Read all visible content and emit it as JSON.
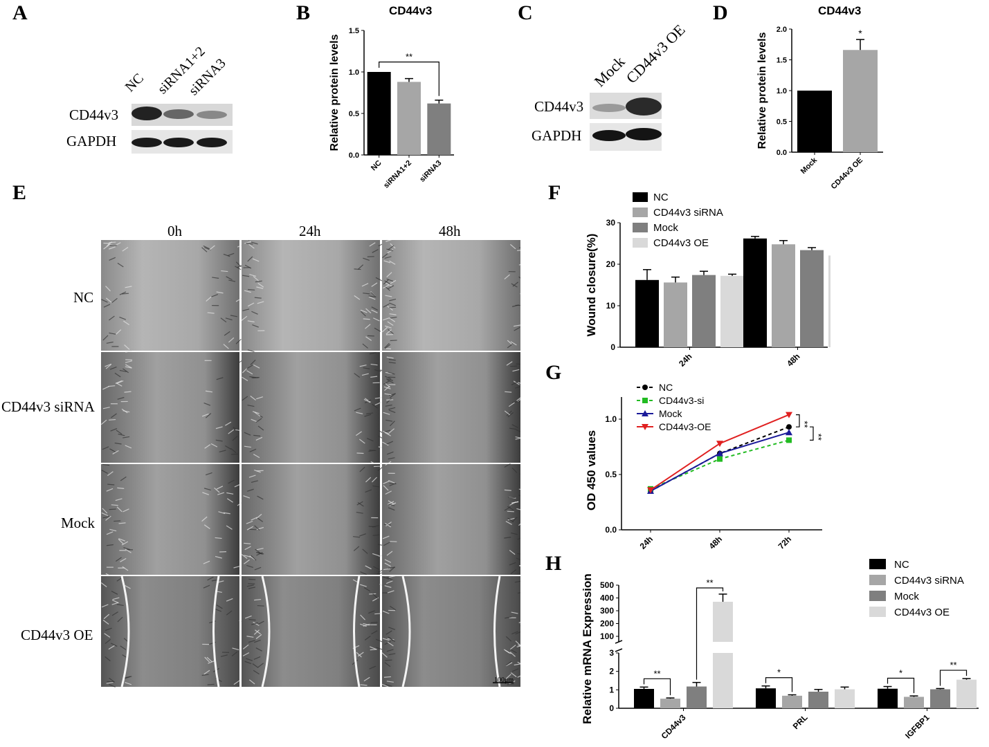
{
  "panels": {
    "A": "A",
    "B": "B",
    "C": "C",
    "D": "D",
    "E": "E",
    "F": "F",
    "G": "G",
    "H": "H"
  },
  "blot_a": {
    "lanes": [
      "NC",
      "siRNA1+2",
      "siRNA3"
    ],
    "rows": [
      "CD44v3",
      "GAPDH"
    ]
  },
  "blot_c": {
    "lanes": [
      "Mock",
      "CD44v3 OE"
    ],
    "rows": [
      "CD44v3",
      "GAPDH"
    ]
  },
  "panel_e": {
    "columns": [
      "0h",
      "24h",
      "48h"
    ],
    "rows": [
      "NC",
      "CD44v3 siRNA",
      "Mock",
      "CD44v3 OE"
    ],
    "scale_bar": "100μm"
  },
  "colors": {
    "black": "#000000",
    "light_gray": "#a6a6a6",
    "dark_gray": "#7f7f7f",
    "pale_gray": "#d9d9d9",
    "green": "#22bb22",
    "blue": "#1a1a99",
    "red": "#e02020"
  },
  "chart_data": [
    {
      "id": "B",
      "type": "bar",
      "title": "CD44v3",
      "ylabel": "Relative protein levels",
      "categories": [
        "NC",
        "siRNA1+2",
        "siRNA3"
      ],
      "values": [
        1.0,
        0.88,
        0.62
      ],
      "errors": [
        0,
        0.04,
        0.04
      ],
      "ylim": [
        0,
        1.5
      ],
      "yticks": [
        "0.0",
        "0.5",
        "1.0",
        "1.5"
      ],
      "yticks_num": [
        0,
        0.5,
        1.0,
        1.5
      ],
      "significance": [
        {
          "from": 0,
          "to": 2,
          "label": "**"
        }
      ]
    },
    {
      "id": "D",
      "type": "bar",
      "title": "CD44v3",
      "ylabel": "Relative protein levels",
      "categories": [
        "Mock",
        "CD44v3 OE"
      ],
      "values": [
        1.0,
        1.66
      ],
      "errors": [
        0,
        0.17
      ],
      "ylim": [
        0,
        2.0
      ],
      "yticks": [
        "0.0",
        "0.5",
        "1.0",
        "1.5",
        "2.0"
      ],
      "yticks_num": [
        0,
        0.5,
        1.0,
        1.5,
        2.0
      ],
      "significance": [
        {
          "bar": 1,
          "label": "*"
        }
      ]
    },
    {
      "id": "F",
      "type": "bar",
      "ylabel": "Wound closure(%)",
      "categories": [
        "24h",
        "48h"
      ],
      "series": [
        {
          "name": "NC",
          "values": [
            16.2,
            26.2
          ],
          "errors": [
            2.5,
            0.5
          ]
        },
        {
          "name": "CD44v3 siRNA",
          "values": [
            15.6,
            24.8
          ],
          "errors": [
            1.3,
            0.9
          ]
        },
        {
          "name": "Mock",
          "values": [
            17.4,
            23.4
          ],
          "errors": [
            0.9,
            0.6
          ]
        },
        {
          "name": "CD44v3 OE",
          "values": [
            17.2,
            22.1
          ],
          "errors": [
            0.4,
            0.5
          ]
        }
      ],
      "ylim": [
        0,
        30
      ],
      "yticks": [
        "0",
        "10",
        "20",
        "30"
      ],
      "yticks_num": [
        0,
        10,
        20,
        30
      ],
      "legend": "top-left"
    },
    {
      "id": "G",
      "type": "line",
      "ylabel": "OD 450 values",
      "x": [
        "24h",
        "48h",
        "72h"
      ],
      "series": [
        {
          "name": "NC",
          "values": [
            0.35,
            0.69,
            0.93
          ]
        },
        {
          "name": "CD44v3-si",
          "values": [
            0.37,
            0.64,
            0.81
          ]
        },
        {
          "name": "Mock",
          "values": [
            0.35,
            0.69,
            0.88
          ]
        },
        {
          "name": "CD44v3-OE",
          "values": [
            0.36,
            0.78,
            1.04
          ]
        }
      ],
      "ylim": [
        0,
        1.2
      ],
      "yticks": [
        "0.0",
        "0.5",
        "1.0"
      ],
      "yticks_num": [
        0,
        0.5,
        1.0
      ],
      "significance": [
        "**",
        "**"
      ],
      "legend": "top-left"
    },
    {
      "id": "H",
      "type": "bar",
      "ylabel": "Relative mRNA Expression",
      "categories": [
        "CD44v3",
        "PRL",
        "IGFBP1"
      ],
      "series": [
        {
          "name": "NC",
          "values": [
            1.05,
            1.08,
            1.06
          ],
          "errors": [
            0.1,
            0.13,
            0.12
          ]
        },
        {
          "name": "CD44v3 siRNA",
          "values": [
            0.52,
            0.68,
            0.62
          ],
          "errors": [
            0.04,
            0.05,
            0.05
          ]
        },
        {
          "name": "Mock",
          "values": [
            1.18,
            0.9,
            1.03
          ],
          "errors": [
            0.22,
            0.12,
            0.04
          ]
        },
        {
          "name": "CD44v3 OE",
          "values": [
            370,
            1.03,
            1.55
          ],
          "errors": [
            60,
            0.12,
            0.06
          ]
        }
      ],
      "yticks": [
        "0",
        "1",
        "2",
        "3",
        "100",
        "200",
        "300",
        "400",
        "500"
      ],
      "axis_break": true,
      "significance": [
        {
          "category": "CD44v3",
          "pair": [
            0,
            1
          ],
          "label": "**"
        },
        {
          "category": "CD44v3",
          "pair": [
            2,
            3
          ],
          "label": "**"
        },
        {
          "category": "PRL",
          "pair": [
            0,
            1
          ],
          "label": "*"
        },
        {
          "category": "IGFBP1",
          "pair": [
            0,
            1
          ],
          "label": "*"
        },
        {
          "category": "IGFBP1",
          "pair": [
            2,
            3
          ],
          "label": "**"
        }
      ],
      "legend": "top-right"
    }
  ]
}
